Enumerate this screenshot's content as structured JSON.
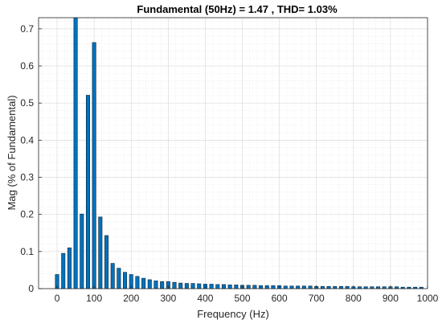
{
  "chart_data": {
    "type": "bar",
    "title": "Fundamental (50Hz) = 1.47 , THD= 1.03%",
    "xlabel": "Frequency (Hz)",
    "ylabel": "Mag (% of Fundamental)",
    "xlim": [
      -50,
      1000
    ],
    "ylim": [
      0,
      0.73
    ],
    "xticks": [
      0,
      100,
      200,
      300,
      400,
      500,
      600,
      700,
      800,
      900,
      1000
    ],
    "yticks": [
      0,
      0.1,
      0.2,
      0.3,
      0.4,
      0.5,
      0.6,
      0.7
    ],
    "ytick_labels": [
      "0",
      "0.1",
      "0.2",
      "0.3",
      "0.4",
      "0.5",
      "0.6",
      "0.7"
    ],
    "grid": "on",
    "minor_grid": "on",
    "color": "#0072BD",
    "x": [
      0,
      16.67,
      33.33,
      50,
      66.67,
      83.33,
      100,
      116.67,
      133.33,
      150,
      166.67,
      183.33,
      200,
      216.67,
      233.33,
      250,
      266.67,
      283.33,
      300,
      316.67,
      333.33,
      350,
      366.67,
      383.33,
      400,
      416.67,
      433.33,
      450,
      466.67,
      483.33,
      500,
      516.67,
      533.33,
      550,
      566.67,
      583.33,
      600,
      616.67,
      633.33,
      650,
      666.67,
      683.33,
      700,
      716.67,
      733.33,
      750,
      766.67,
      783.33,
      800,
      816.67,
      833.33,
      850,
      866.67,
      883.33,
      900,
      916.67,
      933.33,
      950,
      966.67,
      983.33
    ],
    "values": [
      0.038,
      0.095,
      0.11,
      0.735,
      0.201,
      0.521,
      0.663,
      0.193,
      0.143,
      0.068,
      0.055,
      0.044,
      0.038,
      0.033,
      0.028,
      0.024,
      0.021,
      0.019,
      0.019,
      0.017,
      0.015,
      0.014,
      0.014,
      0.013,
      0.012,
      0.012,
      0.011,
      0.011,
      0.01,
      0.01,
      0.009,
      0.009,
      0.009,
      0.008,
      0.008,
      0.008,
      0.008,
      0.007,
      0.007,
      0.007,
      0.007,
      0.007,
      0.006,
      0.006,
      0.006,
      0.006,
      0.006,
      0.006,
      0.005,
      0.005,
      0.005,
      0.005,
      0.005,
      0.005,
      0.005,
      0.005,
      0.004,
      0.004,
      0.004,
      0.004
    ]
  }
}
